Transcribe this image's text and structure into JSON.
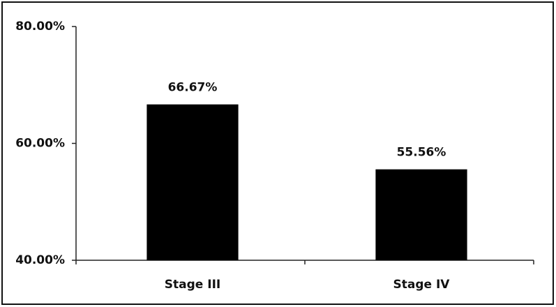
{
  "chart_data": {
    "type": "bar",
    "categories": [
      "Stage III",
      "Stage IV"
    ],
    "values": [
      66.67,
      55.56
    ],
    "value_labels": [
      "66.67%",
      "55.56%"
    ],
    "color": "#000000",
    "ylim": [
      40,
      80
    ],
    "yticks": [
      {
        "value": 40,
        "label": "40.00%"
      },
      {
        "value": 60,
        "label": "60.00%"
      },
      {
        "value": 80,
        "label": "80.00%"
      }
    ],
    "grid": false
  }
}
